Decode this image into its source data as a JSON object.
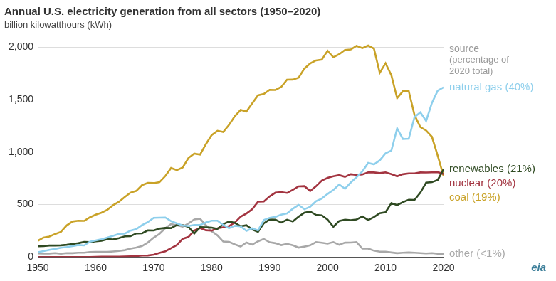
{
  "chart_data": {
    "type": "line",
    "title": "Annual U.S. electricity generation from all sectors (1950–2020)",
    "subtitle": "billion kilowatthours (kWh)",
    "annotations": [
      "source",
      "(percentage of",
      "2020 total)"
    ],
    "source_logo": "eia",
    "x": [
      1950,
      1951,
      1952,
      1953,
      1954,
      1955,
      1956,
      1957,
      1958,
      1959,
      1960,
      1961,
      1962,
      1963,
      1964,
      1965,
      1966,
      1967,
      1968,
      1969,
      1970,
      1971,
      1972,
      1973,
      1974,
      1975,
      1976,
      1977,
      1978,
      1979,
      1980,
      1981,
      1982,
      1983,
      1984,
      1985,
      1986,
      1987,
      1988,
      1989,
      1990,
      1991,
      1992,
      1993,
      1994,
      1995,
      1996,
      1997,
      1998,
      1999,
      2000,
      2001,
      2002,
      2003,
      2004,
      2005,
      2006,
      2007,
      2008,
      2009,
      2010,
      2011,
      2012,
      2013,
      2014,
      2015,
      2016,
      2017,
      2018,
      2019,
      2020
    ],
    "series": [
      {
        "name": "natural gas (40%)",
        "color": "#8ecfec",
        "values": [
          45,
          55,
          67,
          77,
          88,
          95,
          104,
          114,
          110,
          146,
          158,
          169,
          184,
          202,
          220,
          222,
          251,
          265,
          304,
          333,
          373,
          374,
          376,
          341,
          320,
          300,
          295,
          305,
          305,
          329,
          346,
          346,
          305,
          274,
          297,
          292,
          249,
          273,
          253,
          352,
          373,
          382,
          404,
          415,
          460,
          496,
          455,
          479,
          532,
          557,
          601,
          639,
          691,
          650,
          710,
          761,
          816,
          897,
          883,
          921,
          988,
          1014,
          1226,
          1124,
          1127,
          1335,
          1379,
          1297,
          1469,
          1586,
          1617
        ]
      },
      {
        "name": "renewables (21%)",
        "color": "#2f4a22",
        "values": [
          101,
          104,
          109,
          109,
          111,
          116,
          124,
          131,
          143,
          141,
          149,
          155,
          170,
          167,
          180,
          196,
          198,
          224,
          225,
          253,
          252,
          270,
          277,
          275,
          305,
          303,
          287,
          223,
          284,
          283,
          279,
          267,
          313,
          338,
          325,
          292,
          302,
          262,
          240,
          321,
          357,
          355,
          328,
          355,
          338,
          384,
          422,
          433,
          401,
          397,
          356,
          288,
          343,
          356,
          351,
          358,
          386,
          353,
          380,
          417,
          427,
          513,
          495,
          523,
          546,
          544,
          613,
          708,
          713,
          735,
          834
        ]
      },
      {
        "name": "nuclear (20%)",
        "color": "#a33440",
        "values": [
          0,
          0,
          0,
          0,
          0,
          0,
          0,
          0,
          0,
          0,
          1,
          2,
          2,
          3,
          3,
          4,
          6,
          8,
          13,
          14,
          22,
          38,
          54,
          84,
          114,
          173,
          191,
          251,
          276,
          255,
          251,
          273,
          283,
          294,
          328,
          384,
          414,
          455,
          527,
          529,
          577,
          613,
          619,
          610,
          640,
          673,
          675,
          629,
          674,
          728,
          754,
          769,
          780,
          764,
          789,
          782,
          787,
          806,
          806,
          799,
          807,
          790,
          769,
          789,
          797,
          797,
          806,
          805,
          807,
          809,
          790
        ]
      },
      {
        "name": "coal (19%)",
        "color": "#c9a227",
        "values": [
          154,
          185,
          195,
          219,
          239,
          301,
          338,
          346,
          344,
          378,
          403,
          422,
          450,
          494,
          526,
          571,
          613,
          630,
          685,
          706,
          704,
          713,
          771,
          848,
          828,
          853,
          944,
          985,
          976,
          1075,
          1162,
          1203,
          1192,
          1259,
          1342,
          1402,
          1386,
          1464,
          1541,
          1554,
          1594,
          1592,
          1621,
          1690,
          1691,
          1709,
          1796,
          1845,
          1874,
          1881,
          1966,
          1904,
          1933,
          1974,
          1978,
          2013,
          1991,
          2016,
          1986,
          1756,
          1847,
          1733,
          1514,
          1581,
          1582,
          1352,
          1239,
          1206,
          1146,
          965,
          774
        ]
      },
      {
        "name": "other (<1%)",
        "color": "#a8a8a8",
        "values": [
          34,
          33,
          33,
          37,
          31,
          37,
          36,
          40,
          40,
          47,
          48,
          49,
          48,
          52,
          57,
          65,
          79,
          90,
          104,
          138,
          184,
          220,
          274,
          314,
          301,
          289,
          320,
          358,
          365,
          303,
          246,
          206,
          147,
          144,
          120,
          100,
          137,
          118,
          149,
          172,
          140,
          131,
          113,
          125,
          111,
          89,
          99,
          111,
          142,
          135,
          127,
          142,
          116,
          136,
          137,
          141,
          79,
          80,
          60,
          51,
          51,
          43,
          36,
          40,
          43,
          40,
          37,
          34,
          37,
          31,
          28
        ]
      }
    ],
    "xlim": [
      1950,
      2020
    ],
    "xticks": [
      1950,
      1960,
      1970,
      1980,
      1990,
      2000,
      2010,
      2020
    ],
    "ylim": [
      0,
      2100
    ],
    "yticks": [
      0,
      500,
      {
        "value": 1000,
        "label": "1,000"
      },
      {
        "value": 1500,
        "label": "1,500"
      },
      {
        "value": 2000,
        "label": "2,000"
      }
    ],
    "grid": "y"
  }
}
